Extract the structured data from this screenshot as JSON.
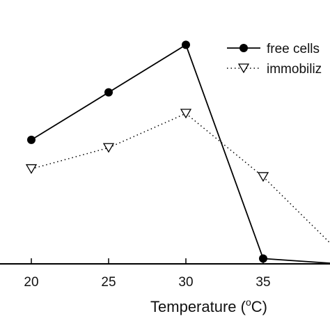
{
  "chart_data": {
    "type": "line",
    "x": [
      20,
      25,
      30,
      35,
      40
    ],
    "xlim": [
      15,
      40
    ],
    "ylim": [
      0,
      100
    ],
    "xlabel": {
      "prefix": "Temperature (",
      "superscript": "o",
      "suffix": "C)"
    },
    "xticks": [
      "20",
      "25",
      "30",
      "35"
    ],
    "grid": false,
    "legend_position": "top-right",
    "series": [
      {
        "name": "free cells",
        "values": [
          47,
          65,
          83,
          2,
          0
        ],
        "color": "#000000",
        "line_style": "solid",
        "marker": "filled-circle"
      },
      {
        "name": "immobiliz",
        "values": [
          36,
          44,
          57,
          33,
          4
        ],
        "color": "#000000",
        "line_style": "dotted",
        "marker": "open-triangle-down"
      }
    ]
  }
}
